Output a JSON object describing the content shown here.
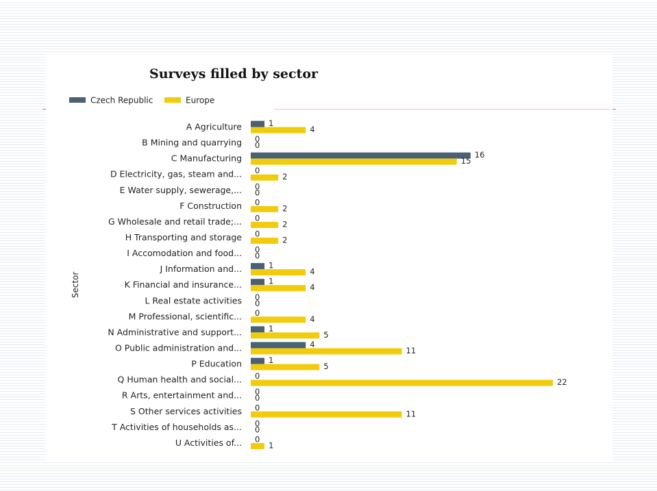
{
  "chart_data": {
    "type": "bar",
    "orientation": "horizontal",
    "title": "Surveys filled by sector",
    "ylabel": "Sector",
    "xlabel": "",
    "legend_position": "top-left",
    "grid": false,
    "xlim": [
      0,
      22
    ],
    "categories": [
      "A Agriculture",
      "B Mining and quarrying",
      "C Manufacturing",
      "D Electricity, gas, steam and...",
      "E Water supply, sewerage,...",
      "F Construction",
      "G Wholesale and retail trade;...",
      "H Transporting and storage",
      "I Accomodation and food...",
      "J Information and...",
      "K Financial and insurance...",
      "L Real estate activities",
      "M Professional, scientific...",
      "N Administrative and support...",
      "O Public administration and...",
      "P Education",
      "Q Human health and social...",
      "R Arts, entertainment and...",
      "S Other services activities",
      "T Activities of households as...",
      "U Activities of..."
    ],
    "series": [
      {
        "name": "Czech Republic",
        "color": "#4a6075",
        "values": [
          1,
          0,
          16,
          0,
          0,
          0,
          0,
          0,
          0,
          1,
          1,
          0,
          0,
          1,
          4,
          1,
          0,
          0,
          0,
          0,
          0
        ]
      },
      {
        "name": "Europe",
        "color": "#f2cc0c",
        "values": [
          4,
          0,
          15,
          2,
          0,
          2,
          2,
          2,
          0,
          4,
          4,
          0,
          4,
          5,
          11,
          5,
          22,
          0,
          11,
          0,
          1
        ]
      }
    ]
  }
}
